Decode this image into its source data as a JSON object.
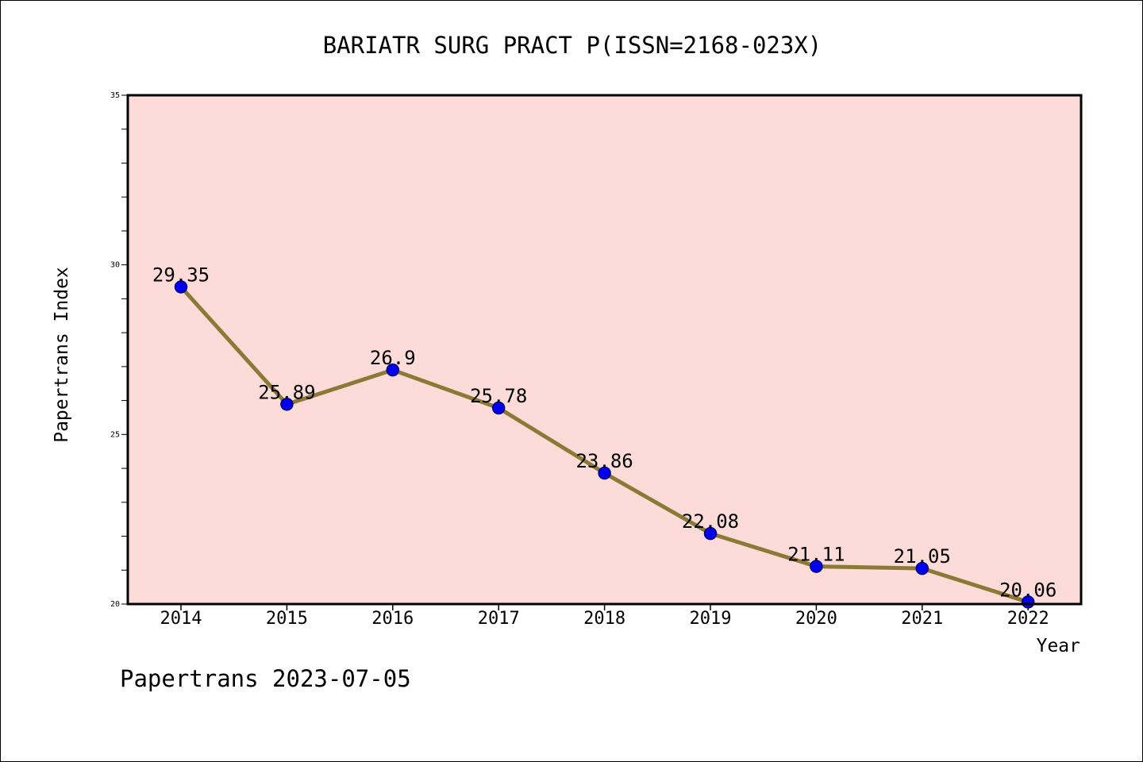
{
  "chart_data": {
    "type": "line",
    "title": "BARIATR SURG PRACT P(ISSN=2168-023X)",
    "xlabel": "Year",
    "ylabel": "Papertrans Index",
    "categories": [
      "2014",
      "2015",
      "2016",
      "2017",
      "2018",
      "2019",
      "2020",
      "2021",
      "2022"
    ],
    "series": [
      {
        "values": [
          29.35,
          25.89,
          26.9,
          25.78,
          23.86,
          22.08,
          21.11,
          21.05,
          20.06
        ],
        "labels": [
          "29.35",
          "25.89",
          "26.9",
          "25.78",
          "23.86",
          "22.08",
          "21.11",
          "21.05",
          "20.06"
        ]
      }
    ],
    "ylim": [
      20,
      35
    ],
    "y_major_ticks": [
      20,
      25,
      30,
      35
    ],
    "y_minor_step": 1,
    "grid": false,
    "legend": "none",
    "colors": {
      "plot_background": "#fddbd8",
      "line": "#8b7a35",
      "marker": "#0000ee",
      "marker_edge": "#000080"
    }
  },
  "footer": "Papertrans 2023-07-05"
}
